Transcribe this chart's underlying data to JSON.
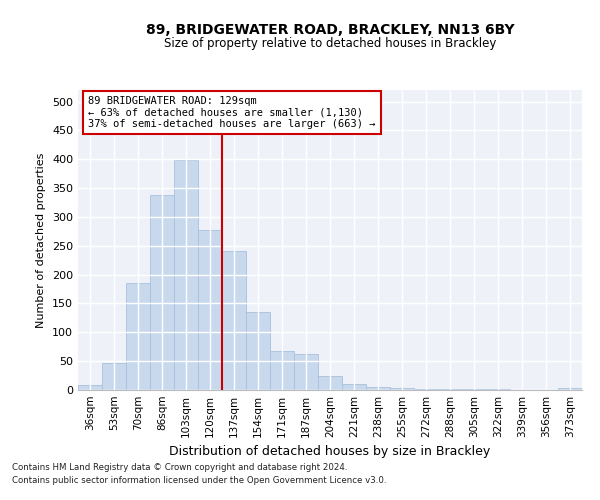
{
  "title": "89, BRIDGEWATER ROAD, BRACKLEY, NN13 6BY",
  "subtitle": "Size of property relative to detached houses in Brackley",
  "xlabel": "Distribution of detached houses by size in Brackley",
  "ylabel": "Number of detached properties",
  "bar_color": "#c8d9ee",
  "bar_edge_color": "#a8c0dc",
  "background_color": "#eef2f8",
  "grid_color": "#ffffff",
  "categories": [
    "36sqm",
    "53sqm",
    "70sqm",
    "86sqm",
    "103sqm",
    "120sqm",
    "137sqm",
    "154sqm",
    "171sqm",
    "187sqm",
    "204sqm",
    "221sqm",
    "238sqm",
    "255sqm",
    "272sqm",
    "288sqm",
    "305sqm",
    "322sqm",
    "339sqm",
    "356sqm",
    "373sqm"
  ],
  "values": [
    8,
    46,
    185,
    338,
    398,
    277,
    241,
    136,
    68,
    62,
    25,
    10,
    6,
    3,
    2,
    1,
    1,
    1,
    0,
    0,
    3
  ],
  "vline_x": 5.5,
  "vline_color": "#cc0000",
  "annotation_text": "89 BRIDGEWATER ROAD: 129sqm\n← 63% of detached houses are smaller (1,130)\n37% of semi-detached houses are larger (663) →",
  "annotation_box_edge": "#cc0000",
  "ylim": [
    0,
    520
  ],
  "yticks": [
    0,
    50,
    100,
    150,
    200,
    250,
    300,
    350,
    400,
    450,
    500
  ],
  "footnote1": "Contains HM Land Registry data © Crown copyright and database right 2024.",
  "footnote2": "Contains public sector information licensed under the Open Government Licence v3.0."
}
